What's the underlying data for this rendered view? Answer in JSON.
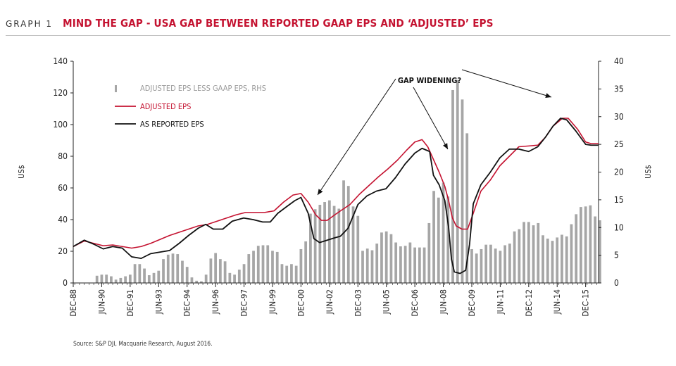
{
  "header": {
    "label": "GRAPH 1",
    "title": "MIND THE GAP - USA GAP BETWEEN REPORTED GAAP EPS AND ‘ADJUSTED’ EPS"
  },
  "source": "Source: S&P DJI, Macquarie Research, August 2016.",
  "colors": {
    "adjusted": "#c41230",
    "reported": "#111111",
    "gap_bars": "#a6a6a6",
    "axis": "#222222"
  },
  "chart_data": {
    "type": "line+bar",
    "x_range": [
      1988.92,
      2016.6
    ],
    "x_ticks": [
      {
        "label": "DEC-88",
        "x": 1988.92
      },
      {
        "label": "JUN-90",
        "x": 1990.42
      },
      {
        "label": "DEC-91",
        "x": 1991.92
      },
      {
        "label": "JUN-93",
        "x": 1993.42
      },
      {
        "label": "DEC-94",
        "x": 1994.92
      },
      {
        "label": "JUN-96",
        "x": 1996.42
      },
      {
        "label": "DEC-97",
        "x": 1997.92
      },
      {
        "label": "JUN-99",
        "x": 1999.42
      },
      {
        "label": "DEC-00",
        "x": 2000.92
      },
      {
        "label": "JUN-02",
        "x": 2002.42
      },
      {
        "label": "DEC-03",
        "x": 2003.92
      },
      {
        "label": "JUN-05",
        "x": 2005.42
      },
      {
        "label": "DEC-06",
        "x": 2006.92
      },
      {
        "label": "JUN-08",
        "x": 2008.42
      },
      {
        "label": "DEC-09",
        "x": 2009.92
      },
      {
        "label": "JUN-11",
        "x": 2011.42
      },
      {
        "label": "DEC-12",
        "x": 2012.92
      },
      {
        "label": "JUN-14",
        "x": 2014.42
      },
      {
        "label": "DEC-15",
        "x": 2015.92
      }
    ],
    "y_left": {
      "label": "US$",
      "range": [
        0,
        140
      ],
      "ticks": [
        0,
        20,
        40,
        60,
        80,
        100,
        120,
        140
      ]
    },
    "y_right": {
      "label": "US$",
      "range": [
        0,
        40
      ],
      "ticks": [
        0,
        5,
        10,
        15,
        20,
        25,
        30,
        35,
        40
      ]
    },
    "legend": {
      "placement": "upper-left",
      "items": [
        {
          "key": "gap",
          "label": "ADJUSTED EPS LESS GAAP EPS, RHS"
        },
        {
          "key": "adjusted",
          "label": "ADJUSTED EPS"
        },
        {
          "key": "reported",
          "label": "AS REPORTED EPS"
        }
      ]
    },
    "annotation": {
      "text": "GAP WIDENING?"
    },
    "series": [
      {
        "key": "adjusted",
        "name": "ADJUSTED EPS",
        "axis": "left",
        "points": [
          [
            1988.92,
            23
          ],
          [
            1989.5,
            26.5
          ],
          [
            1990.0,
            25
          ],
          [
            1990.5,
            23.5
          ],
          [
            1991.0,
            24
          ],
          [
            1991.5,
            23
          ],
          [
            1992.0,
            22
          ],
          [
            1992.5,
            23
          ],
          [
            1993.0,
            25
          ],
          [
            1993.5,
            27.5
          ],
          [
            1994.0,
            30
          ],
          [
            1994.5,
            32
          ],
          [
            1995.0,
            34
          ],
          [
            1995.5,
            36
          ],
          [
            1996.0,
            37
          ],
          [
            1996.5,
            39
          ],
          [
            1997.0,
            41
          ],
          [
            1997.5,
            43
          ],
          [
            1998.0,
            44.5
          ],
          [
            1998.5,
            44.5
          ],
          [
            1999.0,
            44.5
          ],
          [
            1999.5,
            45.5
          ],
          [
            2000.0,
            51
          ],
          [
            2000.5,
            55.5
          ],
          [
            2000.92,
            56.5
          ],
          [
            2001.3,
            51
          ],
          [
            2001.7,
            43
          ],
          [
            2002.0,
            39.5
          ],
          [
            2002.3,
            39.5
          ],
          [
            2002.7,
            43
          ],
          [
            2003.0,
            45.5
          ],
          [
            2003.5,
            49.5
          ],
          [
            2004.0,
            56
          ],
          [
            2004.5,
            61.5
          ],
          [
            2005.0,
            67
          ],
          [
            2005.5,
            72
          ],
          [
            2006.0,
            77.5
          ],
          [
            2006.5,
            84
          ],
          [
            2006.92,
            89
          ],
          [
            2007.3,
            90.5
          ],
          [
            2007.6,
            86
          ],
          [
            2007.9,
            78
          ],
          [
            2008.2,
            70
          ],
          [
            2008.5,
            61
          ],
          [
            2008.7,
            52
          ],
          [
            2008.9,
            41
          ],
          [
            2009.1,
            36
          ],
          [
            2009.4,
            34
          ],
          [
            2009.7,
            34
          ],
          [
            2010.0,
            44
          ],
          [
            2010.4,
            58
          ],
          [
            2010.9,
            65
          ],
          [
            2011.4,
            74
          ],
          [
            2011.9,
            80
          ],
          [
            2012.4,
            86
          ],
          [
            2012.92,
            86.5
          ],
          [
            2013.4,
            87
          ],
          [
            2013.8,
            92
          ],
          [
            2014.2,
            99
          ],
          [
            2014.7,
            104
          ],
          [
            2015.0,
            104
          ],
          [
            2015.5,
            97
          ],
          [
            2015.92,
            89
          ],
          [
            2016.2,
            88
          ],
          [
            2016.6,
            88
          ]
        ]
      },
      {
        "key": "reported",
        "name": "AS REPORTED EPS",
        "axis": "left",
        "points": [
          [
            1988.92,
            23
          ],
          [
            1989.5,
            27
          ],
          [
            1990.0,
            24.5
          ],
          [
            1990.5,
            21.5
          ],
          [
            1991.0,
            23
          ],
          [
            1991.5,
            22
          ],
          [
            1992.0,
            16.5
          ],
          [
            1992.5,
            15.5
          ],
          [
            1993.0,
            18.5
          ],
          [
            1993.5,
            19.5
          ],
          [
            1994.0,
            20.5
          ],
          [
            1994.5,
            25
          ],
          [
            1995.0,
            30
          ],
          [
            1995.5,
            34.5
          ],
          [
            1995.9,
            37
          ],
          [
            1996.3,
            34
          ],
          [
            1996.8,
            34
          ],
          [
            1997.3,
            39
          ],
          [
            1997.9,
            41
          ],
          [
            1998.4,
            40
          ],
          [
            1998.9,
            38.5
          ],
          [
            1999.3,
            38.5
          ],
          [
            1999.7,
            44
          ],
          [
            2000.2,
            48.5
          ],
          [
            2000.6,
            52
          ],
          [
            2000.92,
            54
          ],
          [
            2001.3,
            44
          ],
          [
            2001.6,
            28
          ],
          [
            2001.9,
            25.5
          ],
          [
            2002.3,
            27
          ],
          [
            2002.7,
            28.5
          ],
          [
            2003.0,
            29.5
          ],
          [
            2003.4,
            34.5
          ],
          [
            2003.92,
            49.5
          ],
          [
            2004.4,
            55
          ],
          [
            2004.9,
            58
          ],
          [
            2005.4,
            59.5
          ],
          [
            2005.9,
            66.5
          ],
          [
            2006.4,
            75
          ],
          [
            2006.92,
            82
          ],
          [
            2007.3,
            85
          ],
          [
            2007.7,
            83
          ],
          [
            2007.9,
            68
          ],
          [
            2008.2,
            62
          ],
          [
            2008.5,
            52
          ],
          [
            2008.7,
            35
          ],
          [
            2008.85,
            15
          ],
          [
            2009.0,
            7
          ],
          [
            2009.3,
            6
          ],
          [
            2009.6,
            8
          ],
          [
            2009.8,
            24
          ],
          [
            2010.0,
            50
          ],
          [
            2010.4,
            62
          ],
          [
            2010.9,
            70
          ],
          [
            2011.4,
            79
          ],
          [
            2011.9,
            84.5
          ],
          [
            2012.4,
            84.5
          ],
          [
            2012.92,
            83
          ],
          [
            2013.4,
            86
          ],
          [
            2013.8,
            92
          ],
          [
            2014.2,
            99
          ],
          [
            2014.6,
            104
          ],
          [
            2014.92,
            103
          ],
          [
            2015.4,
            96
          ],
          [
            2015.92,
            87.5
          ],
          [
            2016.2,
            87
          ],
          [
            2016.6,
            87
          ]
        ]
      },
      {
        "key": "gap",
        "name": "ADJUSTED EPS LESS GAAP EPS, RHS",
        "axis": "right",
        "type": "bar",
        "x_start": 1990.17,
        "x_step": 0.25,
        "values": [
          1.3,
          1.5,
          1.5,
          1.2,
          0.6,
          0.9,
          1.2,
          1.5,
          3.4,
          3.4,
          2.6,
          1.4,
          1.8,
          2.2,
          4.3,
          5.1,
          5.3,
          5.2,
          4.0,
          2.9,
          1.0,
          0.4,
          0.3,
          1.5,
          4.4,
          5.4,
          4.3,
          3.9,
          1.8,
          1.5,
          2.4,
          3.4,
          5.2,
          5.8,
          6.7,
          6.8,
          6.8,
          5.8,
          5.6,
          3.4,
          3.1,
          3.4,
          3.1,
          6.1,
          7.5,
          12.5,
          13.3,
          14.1,
          14.6,
          14.9,
          13.9,
          13.4,
          18.5,
          17.5,
          13.8,
          12.1,
          5.8,
          6.2,
          5.9,
          7.1,
          9.1,
          9.3,
          8.8,
          7.3,
          6.6,
          6.7,
          7.3,
          6.4,
          6.4,
          6.4,
          10.8,
          16.6,
          15.4,
          18.1,
          15.6,
          34.8,
          36.6,
          33.1,
          27.0,
          6.1,
          5.3,
          6.1,
          6.9,
          6.9,
          6.2,
          5.8,
          6.8,
          7.1,
          9.3,
          9.7,
          11.0,
          11.0,
          10.4,
          10.8,
          8.6,
          8.0,
          7.6,
          8.2,
          8.7,
          8.4,
          10.6,
          12.4,
          13.7,
          13.8,
          14.0,
          12.0,
          11.3
        ]
      }
    ]
  }
}
